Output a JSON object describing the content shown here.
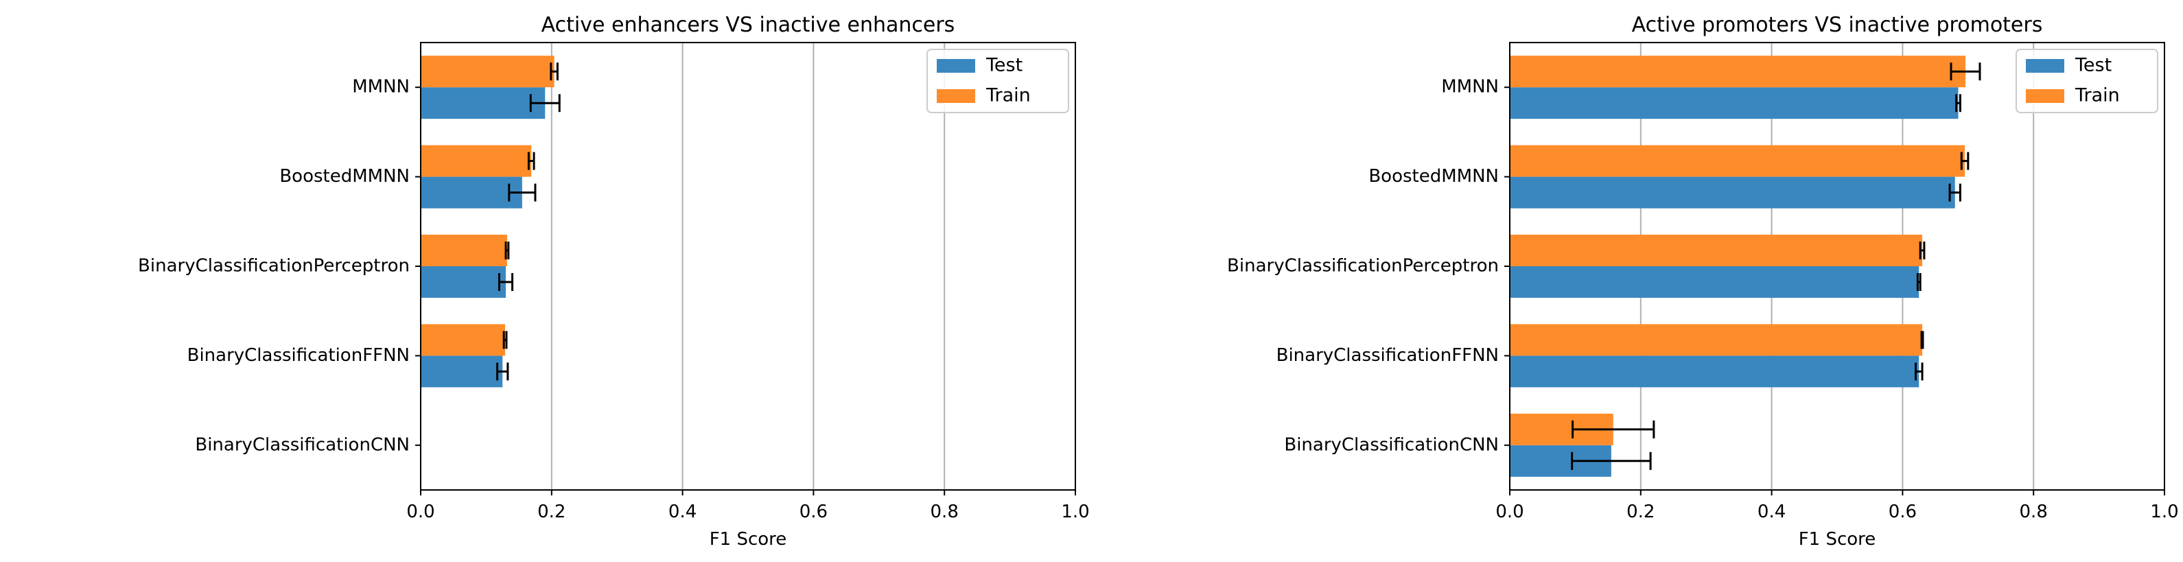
{
  "chart_data": [
    {
      "type": "bar",
      "orientation": "horizontal",
      "title": "Active enhancers VS inactive enhancers",
      "xlabel": "F1 Score",
      "ylabel": "",
      "xlim": [
        0,
        1.0
      ],
      "xticks": [
        0.0,
        0.2,
        0.4,
        0.6,
        0.8,
        1.0
      ],
      "xtick_labels": [
        "0.0",
        "0.2",
        "0.4",
        "0.6",
        "0.8",
        "1.0"
      ],
      "grid": "vertical",
      "legend_position": "top-right",
      "categories": [
        "MMNN",
        "BoostedMMNN",
        "BinaryClassificationPerceptron",
        "BinaryClassificationFFNN",
        "BinaryClassificationCNN"
      ],
      "series": [
        {
          "name": "Test",
          "color": "#3a87c0",
          "values": [
            0.19,
            0.155,
            0.13,
            0.125,
            0.0
          ],
          "errors": [
            0.022,
            0.02,
            0.01,
            0.008,
            0.0
          ]
        },
        {
          "name": "Train",
          "color": "#ff8c2a",
          "values": [
            0.204,
            0.169,
            0.132,
            0.129,
            0.0
          ],
          "errors": [
            0.005,
            0.004,
            0.002,
            0.002,
            0.0
          ]
        }
      ]
    },
    {
      "type": "bar",
      "orientation": "horizontal",
      "title": "Active promoters VS inactive promoters",
      "xlabel": "F1 Score",
      "ylabel": "",
      "xlim": [
        0,
        1.0
      ],
      "xticks": [
        0.0,
        0.2,
        0.4,
        0.6,
        0.8,
        1.0
      ],
      "xtick_labels": [
        "0.0",
        "0.2",
        "0.4",
        "0.6",
        "0.8",
        "1.0"
      ],
      "grid": "vertical",
      "legend_position": "top-right",
      "categories": [
        "MMNN",
        "BoostedMMNN",
        "BinaryClassificationPerceptron",
        "BinaryClassificationFFNN",
        "BinaryClassificationCNN"
      ],
      "series": [
        {
          "name": "Test",
          "color": "#3a87c0",
          "values": [
            0.685,
            0.68,
            0.625,
            0.625,
            0.155
          ],
          "errors": [
            0.003,
            0.008,
            0.002,
            0.005,
            0.06
          ]
        },
        {
          "name": "Train",
          "color": "#ff8c2a",
          "values": [
            0.696,
            0.695,
            0.63,
            0.63,
            0.158
          ],
          "errors": [
            0.022,
            0.005,
            0.003,
            0.001,
            0.062
          ]
        }
      ]
    }
  ]
}
